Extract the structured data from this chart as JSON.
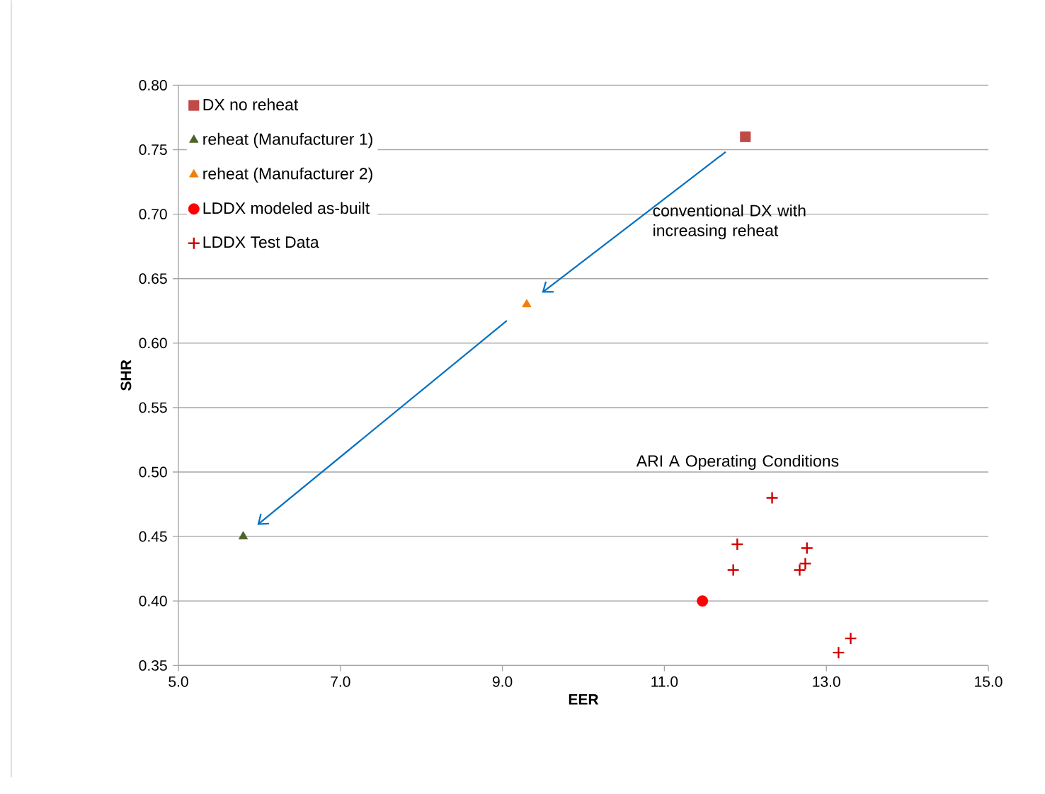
{
  "chart_data": {
    "type": "scatter",
    "xlabel": "EER",
    "ylabel": "SHR",
    "xlim": [
      5.0,
      15.0
    ],
    "ylim": [
      0.35,
      0.8
    ],
    "xticks": [
      {
        "value": 5,
        "label": "5.0"
      },
      {
        "value": 7,
        "label": "7.0"
      },
      {
        "value": 9,
        "label": "9.0"
      },
      {
        "value": 11,
        "label": "11.0"
      },
      {
        "value": 13,
        "label": "13.0"
      },
      {
        "value": 15,
        "label": "15.0"
      }
    ],
    "yticks": [
      {
        "value": 0.35,
        "label": "0.35"
      },
      {
        "value": 0.4,
        "label": "0.40"
      },
      {
        "value": 0.45,
        "label": "0.45"
      },
      {
        "value": 0.5,
        "label": "0.50"
      },
      {
        "value": 0.55,
        "label": "0.55"
      },
      {
        "value": 0.6,
        "label": "0.60"
      },
      {
        "value": 0.65,
        "label": "0.65"
      },
      {
        "value": 0.7,
        "label": "0.70"
      },
      {
        "value": 0.75,
        "label": "0.75"
      },
      {
        "value": 0.8,
        "label": "0.80"
      }
    ],
    "grid": "y",
    "legend": "top left",
    "series": [
      {
        "name": "DX no reheat",
        "color": "#be4b48",
        "marker": "square",
        "x": [
          12.0
        ],
        "values": [
          0.76
        ]
      },
      {
        "name": "reheat (Manufacturer 1)",
        "color": "#4f6228",
        "marker": "triangle",
        "x": [
          5.8
        ],
        "values": [
          0.45
        ]
      },
      {
        "name": "reheat (Manufacturer 2)",
        "color": "#f07f09",
        "marker": "triangle",
        "x": [
          9.3
        ],
        "values": [
          0.63
        ]
      },
      {
        "name": "LDDX modeled as-built",
        "color": "#ff0000",
        "marker": "circle",
        "x": [
          11.47
        ],
        "values": [
          0.4
        ]
      },
      {
        "name": "LDDX Test Data",
        "color": "#d00000",
        "marker": "cross",
        "x": [
          12.33,
          11.9,
          11.85,
          12.76,
          12.74,
          12.67,
          13.3,
          13.15
        ],
        "values": [
          0.48,
          0.444,
          0.424,
          0.441,
          0.429,
          0.424,
          0.371,
          0.36
        ]
      }
    ],
    "annotations": [
      "conventional DX with increasing reheat",
      "ARI A Operating Conditions"
    ]
  }
}
